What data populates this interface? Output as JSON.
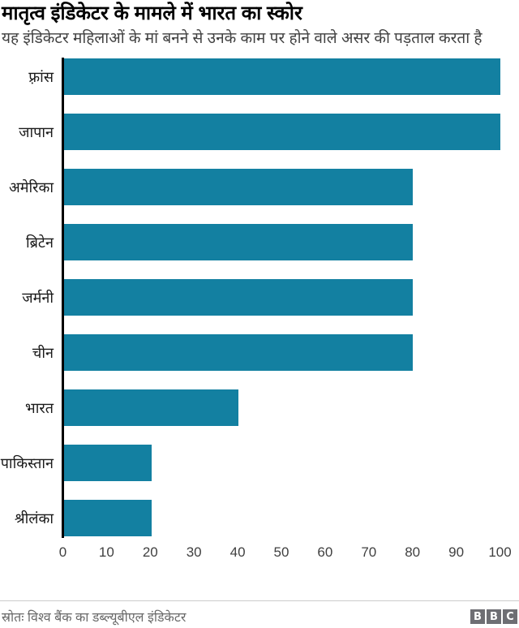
{
  "header": {
    "title": "मातृत्व इंडिकेटर के मामले में भारत का स्कोर",
    "subtitle": "यह इंडिकेटर महिलाओं के मां बनने से उनके काम पर होने वाले असर की पड़ताल करता है"
  },
  "chart_data": {
    "type": "bar",
    "orientation": "horizontal",
    "title": "मातृत्व इंडिकेटर के मामले में भारत का स्कोर",
    "subtitle": "यह इंडिकेटर महिलाओं के मां बनने से उनके काम पर होने वाले असर की पड़ताल करता है",
    "categories": [
      "फ़्रांस",
      "जापान",
      "अमेरिका",
      "ब्रिटेन",
      "जर्मनी",
      "चीन",
      "भारत",
      "पाकिस्तान",
      "श्रीलंका"
    ],
    "values": [
      100,
      100,
      80,
      80,
      80,
      80,
      40,
      20,
      20
    ],
    "xlabel": "",
    "ylabel": "",
    "xlim": [
      0,
      100
    ],
    "xticks": [
      0,
      10,
      20,
      30,
      40,
      50,
      60,
      70,
      80,
      90,
      100
    ],
    "grid": false,
    "legend": false,
    "bar_color": "#1380A1"
  },
  "footer": {
    "source": "स्रोतः विश्व बैंक का डब्ल्यूबीएल इंडिकेटर",
    "logo_letters": [
      "B",
      "B",
      "C"
    ]
  },
  "colors": {
    "bar": "#1380A1",
    "axis": "#000000",
    "title": "#000000",
    "subtitle": "#404040",
    "tick": "#404040",
    "source": "#696969",
    "logo_bg": "#6e6e73",
    "divider": "#cccccc"
  }
}
